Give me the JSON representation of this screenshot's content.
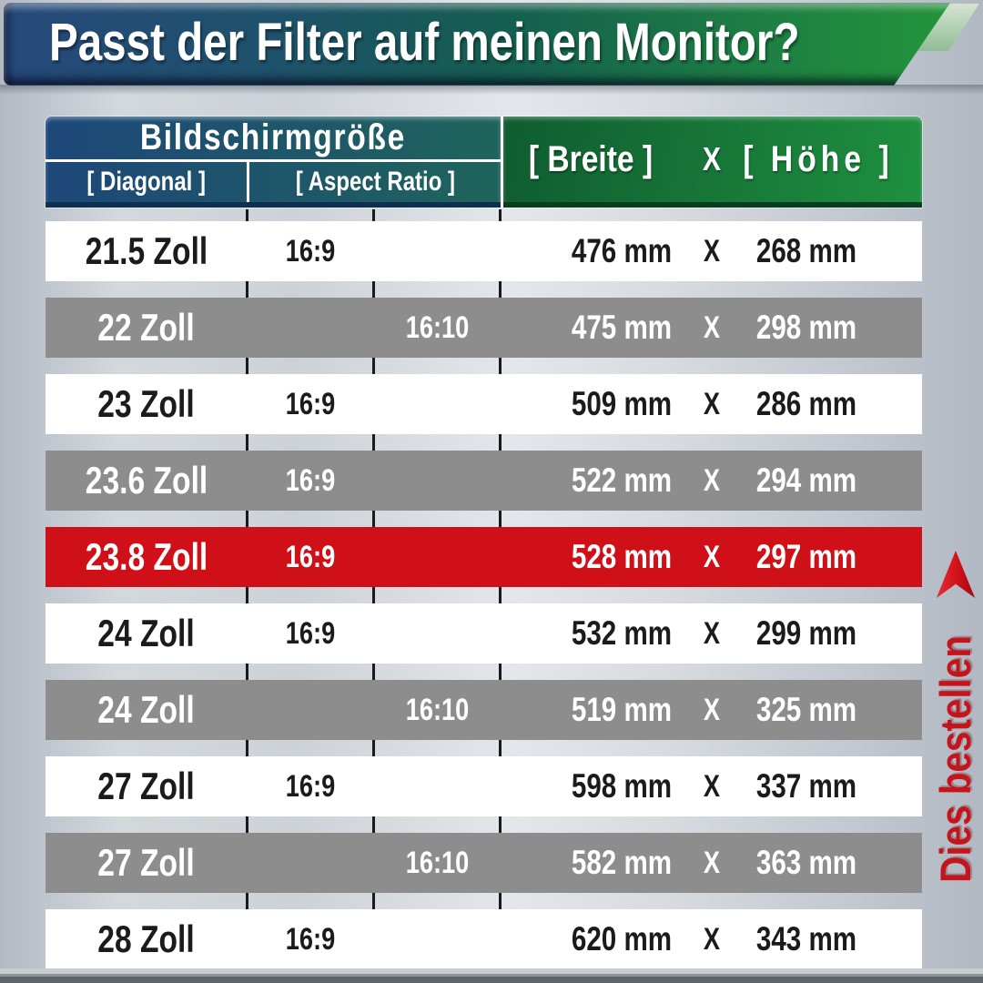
{
  "banner": {
    "title": "Passt der Filter auf meinen Monitor?"
  },
  "table_header": {
    "group": "Bildschirmgröße",
    "diagonal": "[ Diagonal ]",
    "aspect": "[ Aspect Ratio ]",
    "breite": "[ Breite ]",
    "x": "X",
    "hoehe": "[ Höhe ]"
  },
  "table": {
    "rows": [
      {
        "diagonal": "21.5 Zoll",
        "ratio169": "16:9",
        "ratio1610": "",
        "width": "476 mm",
        "x": "X",
        "height": "268 mm",
        "variant": "white"
      },
      {
        "diagonal": "22 Zoll",
        "ratio169": "",
        "ratio1610": "16:10",
        "width": "475 mm",
        "x": "X",
        "height": "298 mm",
        "variant": "gray"
      },
      {
        "diagonal": "23 Zoll",
        "ratio169": "16:9",
        "ratio1610": "",
        "width": "509 mm",
        "x": "X",
        "height": "286 mm",
        "variant": "white"
      },
      {
        "diagonal": "23.6 Zoll",
        "ratio169": "16:9",
        "ratio1610": "",
        "width": "522 mm",
        "x": "X",
        "height": "294 mm",
        "variant": "gray"
      },
      {
        "diagonal": "23.8 Zoll",
        "ratio169": "16:9",
        "ratio1610": "",
        "width": "528 mm",
        "x": "X",
        "height": "297 mm",
        "variant": "red"
      },
      {
        "diagonal": "24 Zoll",
        "ratio169": "16:9",
        "ratio1610": "",
        "width": "532 mm",
        "x": "X",
        "height": "299 mm",
        "variant": "white"
      },
      {
        "diagonal": "24 Zoll",
        "ratio169": "",
        "ratio1610": "16:10",
        "width": "519 mm",
        "x": "X",
        "height": "325 mm",
        "variant": "gray"
      },
      {
        "diagonal": "27 Zoll",
        "ratio169": "16:9",
        "ratio1610": "",
        "width": "598 mm",
        "x": "X",
        "height": "337 mm",
        "variant": "white"
      },
      {
        "diagonal": "27 Zoll",
        "ratio169": "",
        "ratio1610": "16:10",
        "width": "582 mm",
        "x": "X",
        "height": "363 mm",
        "variant": "gray"
      },
      {
        "diagonal": "28 Zoll",
        "ratio169": "16:9",
        "ratio1610": "",
        "width": "620 mm",
        "x": "X",
        "height": "343 mm",
        "variant": "white"
      }
    ]
  },
  "sidebar": {
    "label": "Dies bestellen",
    "arrow": "up-arrowhead-icon"
  },
  "colors": {
    "highlight_red": "#d01018",
    "row_gray": "#8d8d8d",
    "banner_blue": "#26497b",
    "banner_teal": "#155d50",
    "banner_green": "#23953a",
    "accent_red_text": "#c4151c"
  },
  "chart_data": {
    "type": "table",
    "title": "Passt der Filter auf meinen Monitor?",
    "columns": [
      "Diagonal",
      "Aspect Ratio",
      "Breite (mm)",
      "Höhe (mm)"
    ],
    "rows": [
      [
        "21.5 Zoll",
        "16:9",
        476,
        268
      ],
      [
        "22 Zoll",
        "16:10",
        475,
        298
      ],
      [
        "23 Zoll",
        "16:9",
        509,
        286
      ],
      [
        "23.6 Zoll",
        "16:9",
        522,
        294
      ],
      [
        "23.8 Zoll",
        "16:9",
        528,
        297
      ],
      [
        "24 Zoll",
        "16:9",
        532,
        299
      ],
      [
        "24 Zoll",
        "16:10",
        519,
        325
      ],
      [
        "27 Zoll",
        "16:9",
        598,
        337
      ],
      [
        "27 Zoll",
        "16:10",
        582,
        363
      ],
      [
        "28 Zoll",
        "16:9",
        620,
        343
      ]
    ],
    "highlighted_row": "23.8 Zoll",
    "highlight_note": "Dies bestellen"
  }
}
